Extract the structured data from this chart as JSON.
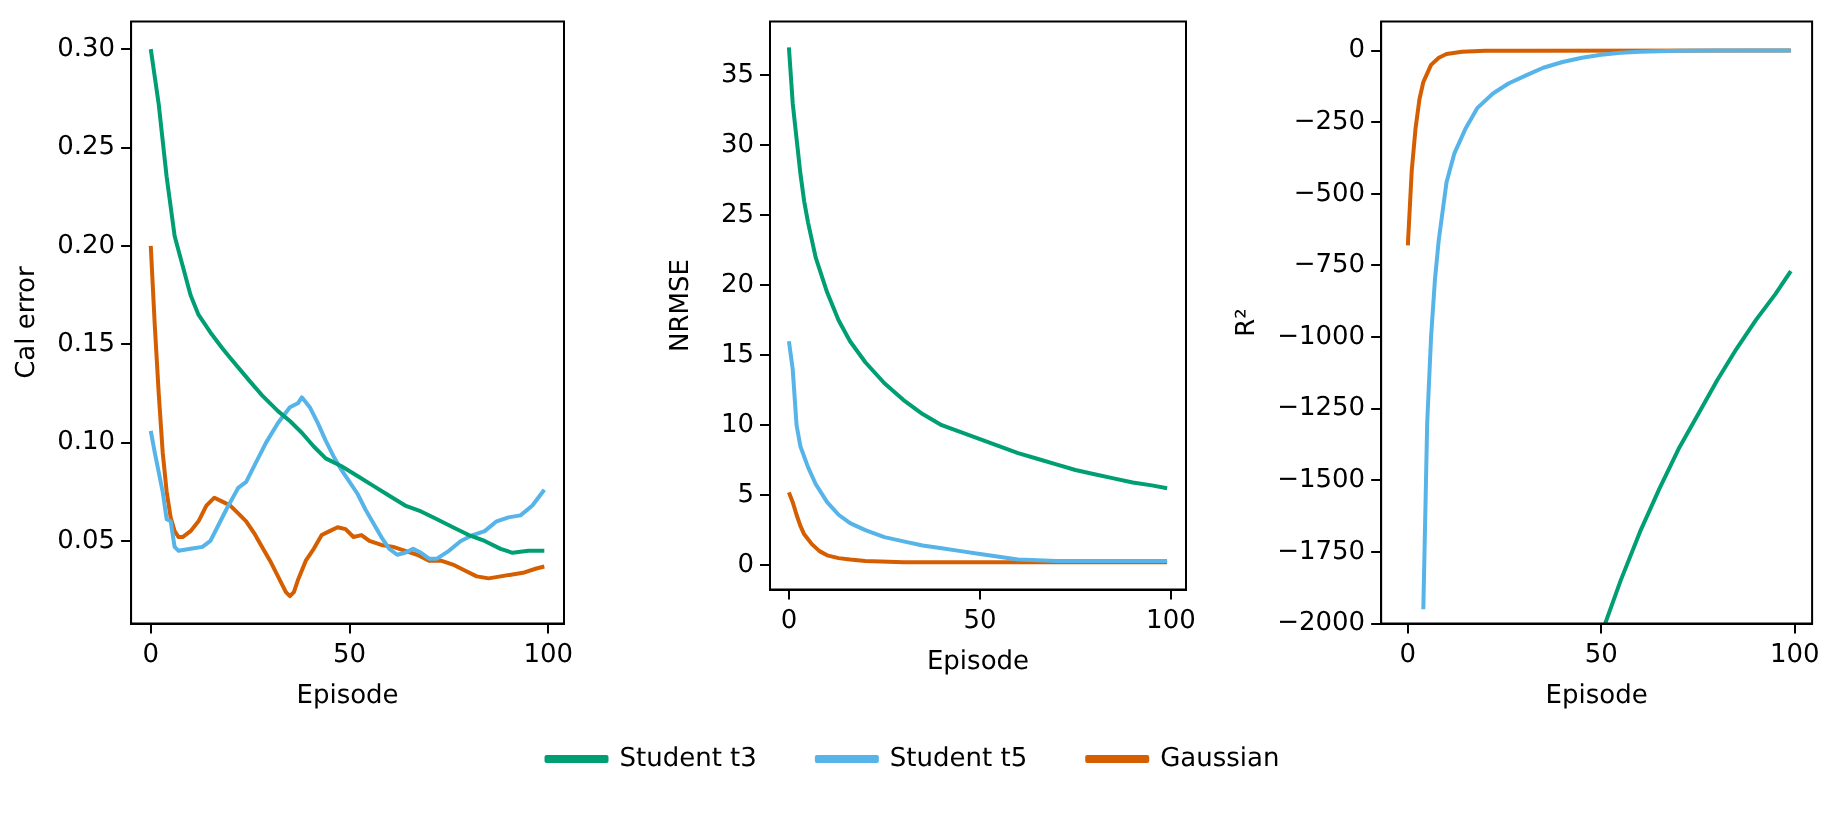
{
  "chart_data": [
    {
      "type": "line",
      "xlabel": "Episode",
      "ylabel": "Cal error",
      "xlim": [
        -4.95,
        103.95
      ],
      "ylim": [
        0.008,
        0.314
      ],
      "xticks": [
        0,
        50,
        100
      ],
      "yticks": [
        {
          "value": 0.05,
          "label": "0.05"
        },
        {
          "value": 0.1,
          "label": "0.10"
        },
        {
          "value": 0.15,
          "label": "0.15"
        },
        {
          "value": 0.2,
          "label": "0.20"
        },
        {
          "value": 0.25,
          "label": "0.25"
        },
        {
          "value": 0.3,
          "label": "0.30"
        }
      ],
      "grid": false,
      "legend": false,
      "marker": "none",
      "line_style": "solid",
      "series": [
        {
          "color": "#009e73",
          "x": [
            0,
            2,
            4,
            6,
            8,
            10,
            12,
            15,
            18,
            20,
            25,
            28,
            32,
            35,
            38,
            41,
            44,
            48,
            52,
            56,
            60,
            64,
            68,
            72,
            76,
            80,
            84,
            88,
            91,
            95,
            99
          ],
          "values": [
            0.3,
            0.272,
            0.235,
            0.205,
            0.19,
            0.175,
            0.165,
            0.156,
            0.148,
            0.143,
            0.131,
            0.124,
            0.116,
            0.111,
            0.105,
            0.098,
            0.092,
            0.088,
            0.083,
            0.078,
            0.073,
            0.068,
            0.065,
            0.061,
            0.057,
            0.053,
            0.05,
            0.046,
            0.044,
            0.045,
            0.045
          ]
        },
        {
          "color": "#56b4e9",
          "x": [
            0,
            1,
            2,
            3,
            4,
            5,
            6,
            7,
            10,
            13,
            15,
            17,
            19,
            22,
            24,
            26,
            29,
            32,
            35,
            37,
            38,
            40,
            42,
            44,
            46,
            48,
            50,
            52,
            54,
            56,
            58,
            60,
            62,
            64,
            66,
            68,
            70,
            72,
            75,
            78,
            81,
            84,
            87,
            90,
            93,
            96,
            99
          ],
          "values": [
            0.106,
            0.095,
            0.085,
            0.075,
            0.061,
            0.06,
            0.047,
            0.045,
            0.046,
            0.047,
            0.05,
            0.058,
            0.066,
            0.077,
            0.08,
            0.088,
            0.1,
            0.11,
            0.118,
            0.12,
            0.123,
            0.118,
            0.11,
            0.101,
            0.093,
            0.086,
            0.08,
            0.074,
            0.066,
            0.059,
            0.052,
            0.046,
            0.043,
            0.044,
            0.046,
            0.044,
            0.041,
            0.041,
            0.045,
            0.05,
            0.053,
            0.055,
            0.06,
            0.062,
            0.063,
            0.068,
            0.076
          ]
        },
        {
          "color": "#d55e00",
          "x": [
            0,
            1,
            2,
            3,
            4,
            5,
            6,
            7,
            8,
            10,
            12,
            14,
            16,
            18,
            20,
            22,
            24,
            26,
            28,
            30,
            32,
            34,
            35,
            36,
            37,
            39,
            41,
            43,
            45,
            47,
            49,
            51,
            53,
            55,
            58,
            61,
            64,
            67,
            70,
            73,
            76,
            79,
            82,
            85,
            88,
            91,
            94,
            97,
            99
          ],
          "values": [
            0.2,
            0.16,
            0.125,
            0.095,
            0.075,
            0.062,
            0.055,
            0.052,
            0.052,
            0.055,
            0.06,
            0.068,
            0.072,
            0.07,
            0.068,
            0.064,
            0.06,
            0.054,
            0.047,
            0.04,
            0.032,
            0.024,
            0.022,
            0.024,
            0.03,
            0.04,
            0.046,
            0.053,
            0.055,
            0.057,
            0.056,
            0.052,
            0.053,
            0.05,
            0.048,
            0.047,
            0.045,
            0.043,
            0.04,
            0.04,
            0.038,
            0.035,
            0.032,
            0.031,
            0.032,
            0.033,
            0.034,
            0.036,
            0.037
          ]
        }
      ]
    },
    {
      "type": "line",
      "xlabel": "Episode",
      "ylabel": "NRMSE",
      "xlim": [
        -4.95,
        103.95
      ],
      "ylim": [
        -1.75,
        38.85
      ],
      "xticks": [
        0,
        50,
        100
      ],
      "yticks": [
        0,
        5,
        10,
        15,
        20,
        25,
        30,
        35
      ],
      "grid": false,
      "legend": "bottom",
      "marker": "none",
      "line_style": "solid",
      "series": [
        {
          "name": "Student t3",
          "color": "#009e73",
          "x": [
            0,
            1,
            2,
            3,
            4,
            5,
            7,
            10,
            13,
            16,
            20,
            25,
            30,
            35,
            40,
            45,
            50,
            55,
            60,
            65,
            70,
            75,
            80,
            85,
            90,
            95,
            99
          ],
          "values": [
            37,
            33,
            30.5,
            28,
            26,
            24.5,
            22,
            19.5,
            17.5,
            16,
            14.5,
            13,
            11.8,
            10.8,
            10,
            9.5,
            9,
            8.5,
            8,
            7.6,
            7.2,
            6.8,
            6.5,
            6.2,
            5.9,
            5.7,
            5.5
          ]
        },
        {
          "name": "Student t5",
          "color": "#56b4e9",
          "x": [
            0,
            1,
            2,
            3,
            5,
            7,
            10,
            13,
            16,
            20,
            25,
            30,
            35,
            40,
            45,
            50,
            55,
            60,
            70,
            80,
            90,
            99
          ],
          "values": [
            16,
            14,
            10,
            8.5,
            7,
            5.8,
            4.5,
            3.6,
            3,
            2.5,
            2,
            1.7,
            1.4,
            1.2,
            1,
            0.8,
            0.6,
            0.4,
            0.3,
            0.3,
            0.3,
            0.3
          ]
        },
        {
          "name": "Gaussian",
          "color": "#d55e00",
          "x": [
            0,
            1,
            2,
            3,
            4,
            6,
            8,
            10,
            13,
            16,
            20,
            30,
            50,
            70,
            99
          ],
          "values": [
            5.2,
            4.5,
            3.6,
            2.8,
            2.2,
            1.5,
            1,
            0.7,
            0.5,
            0.4,
            0.3,
            0.2,
            0.2,
            0.2,
            0.2
          ]
        }
      ]
    },
    {
      "type": "line",
      "xlabel": "Episode",
      "ylabel": "R²",
      "xlim": [
        -6.9,
        104.5
      ],
      "ylim": [
        -2000,
        101
      ],
      "xticks": [
        0,
        50,
        100
      ],
      "yticks": [
        0,
        {
          "value": -250,
          "label": "−250"
        },
        {
          "value": -500,
          "label": "−500"
        },
        {
          "value": -750,
          "label": "−750"
        },
        {
          "value": -1000,
          "label": "−1000"
        },
        {
          "value": -1250,
          "label": "−1250"
        },
        {
          "value": -1500,
          "label": "−1500"
        },
        {
          "value": -1750,
          "label": "−1750"
        },
        {
          "value": -2000,
          "label": "−2000"
        }
      ],
      "grid": false,
      "legend": false,
      "marker": "none",
      "line_style": "solid",
      "series": [
        {
          "color": "#009e73",
          "x": [
            51,
            55,
            60,
            65,
            70,
            75,
            80,
            85,
            90,
            95,
            99
          ],
          "values": [
            -2000,
            -1850,
            -1680,
            -1530,
            -1390,
            -1270,
            -1150,
            -1040,
            -940,
            -850,
            -770
          ]
        },
        {
          "color": "#56b4e9",
          "x": [
            4,
            5,
            6,
            7,
            8,
            10,
            12,
            15,
            18,
            22,
            26,
            30,
            35,
            40,
            45,
            50,
            55,
            60,
            70,
            80,
            99
          ],
          "values": [
            -1950,
            -1300,
            -1000,
            -800,
            -660,
            -460,
            -360,
            -270,
            -200,
            -150,
            -115,
            -90,
            -60,
            -40,
            -25,
            -15,
            -8,
            -4,
            -1,
            0,
            0
          ]
        },
        {
          "color": "#d55e00",
          "x": [
            0,
            1,
            2,
            3,
            4,
            6,
            8,
            10,
            14,
            20,
            99
          ],
          "values": [
            -680,
            -420,
            -270,
            -170,
            -110,
            -50,
            -25,
            -12,
            -4,
            -1,
            0
          ]
        }
      ]
    }
  ]
}
